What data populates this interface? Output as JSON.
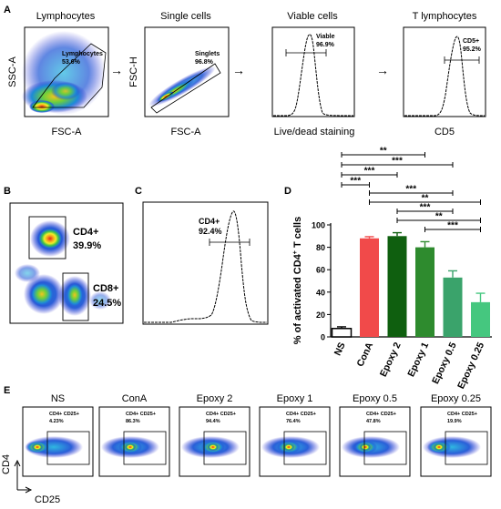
{
  "panel_letters": {
    "a": "A",
    "b": "B",
    "c": "C",
    "d": "D",
    "e": "E"
  },
  "panel_a": {
    "plots": [
      {
        "title": "Lymphocytes",
        "ylabel": "SSC-A",
        "xlabel": "FSC-A",
        "gate_label": "Lymphocytes",
        "gate_value": "53.6%"
      },
      {
        "title": "Single cells",
        "ylabel": "FSC-H",
        "xlabel": "FSC-A",
        "gate_label": "Singlets",
        "gate_value": "96.8%"
      },
      {
        "title": "Viable cells",
        "ylabel": "",
        "xlabel": "Live/dead staining",
        "gate_label": "Viable",
        "gate_value": "96.9%"
      },
      {
        "title": "T lymphocytes",
        "ylabel": "",
        "xlabel": "CD5",
        "gate_label": "CD5+",
        "gate_value": "95.2%"
      }
    ],
    "arrow_glyph": "→"
  },
  "panel_b": {
    "gates": [
      {
        "label": "CD4+",
        "value": "39.9%"
      },
      {
        "label": "CD8+",
        "value": "24.5%"
      }
    ]
  },
  "panel_c": {
    "gate_label": "CD4+",
    "gate_value": "92.4%"
  },
  "colors": {
    "bar_ns": "#ffffff",
    "bar_cona": "#f14a4a",
    "bar_epoxy2": "#0f5f0f",
    "bar_epoxy1": "#2e8b2e",
    "bar_epoxy05": "#3aa36b",
    "bar_epoxy025": "#45c77f"
  },
  "chart_data": {
    "type": "bar",
    "categories": [
      "NS",
      "ConA",
      "Epoxy 2",
      "Epoxy 1",
      "Epoxy 0.5",
      "Epoxy 0.25"
    ],
    "values": [
      7.5,
      88,
      90,
      80,
      53,
      31
    ],
    "errors": [
      1.5,
      1.5,
      3,
      5,
      6,
      8
    ],
    "title": "",
    "xlabel": "",
    "ylabel": "% of activated CD4+ T cells",
    "ylabel_main": "% of activated CD4",
    "ylabel_sup": "+",
    "ylabel_tail": " T cells",
    "ylim": [
      0,
      100
    ],
    "yticks": [
      "0",
      "20",
      "40",
      "60",
      "80",
      "100"
    ],
    "grid": false,
    "significance": [
      {
        "from": "NS",
        "to": "Epoxy 1",
        "label": "**"
      },
      {
        "from": "NS",
        "to": "Epoxy 0.5",
        "label": "***"
      },
      {
        "from": "NS",
        "to": "Epoxy 2",
        "label": "***"
      },
      {
        "from": "NS",
        "to": "ConA",
        "label": "***"
      },
      {
        "from": "ConA",
        "to": "Epoxy 0.5",
        "label": "***"
      },
      {
        "from": "ConA",
        "to": "Epoxy 0.25",
        "label": "**"
      },
      {
        "from": "Epoxy 2",
        "to": "Epoxy 0.5",
        "label": "***"
      },
      {
        "from": "Epoxy 2",
        "to": "Epoxy 0.25",
        "label": "**"
      },
      {
        "from": "Epoxy 1",
        "to": "Epoxy 0.25",
        "label": "***"
      }
    ]
  },
  "panel_e": {
    "ylabel": "CD4",
    "xlabel": "CD25",
    "plots": [
      {
        "title": "NS",
        "gate_label": "CD4+ CD25+",
        "gate_value": "4.23%"
      },
      {
        "title": "ConA",
        "gate_label": "CD4+ CD25+",
        "gate_value": "86.3%"
      },
      {
        "title": "Epoxy 2",
        "gate_label": "CD4+ CD25+",
        "gate_value": "94.4%"
      },
      {
        "title": "Epoxy 1",
        "gate_label": "CD4+ CD25+",
        "gate_value": "76.4%"
      },
      {
        "title": "Epoxy 0.5",
        "gate_label": "CD4+ CD25+",
        "gate_value": "47.8%"
      },
      {
        "title": "Epoxy 0.25",
        "gate_label": "CD4+ CD25+",
        "gate_value": "19.9%"
      }
    ]
  }
}
